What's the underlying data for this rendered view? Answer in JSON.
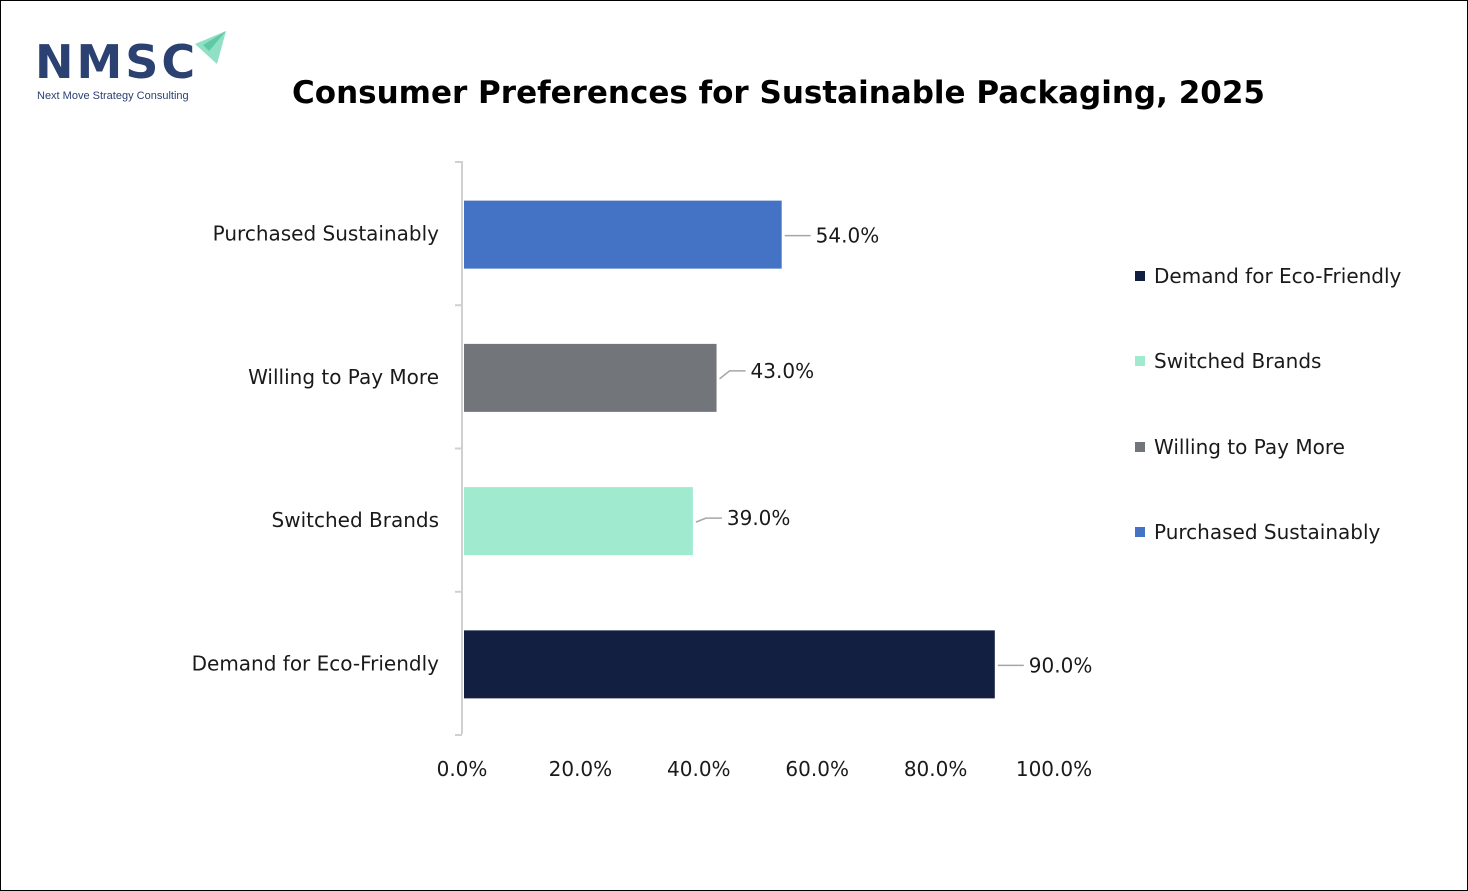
{
  "logo": {
    "text": "NMSC",
    "subtitle": "Next Move Strategy Consulting",
    "colors": {
      "text": "#2b4172",
      "arrow": "#8fe0c4"
    }
  },
  "chart_data": {
    "type": "bar",
    "orientation": "horizontal",
    "title": "Consumer Preferences for Sustainable Packaging, 2025",
    "categories": [
      "Purchased Sustainably",
      "Willing to Pay More",
      "Switched Brands",
      "Demand for Eco-Friendly"
    ],
    "values": [
      54.0,
      43.0,
      39.0,
      90.0
    ],
    "value_labels": [
      "54.0%",
      "43.0%",
      "39.0%",
      "90.0%"
    ],
    "colors": [
      "#4472c4",
      "#72767b",
      "#a0ead0",
      "#121f40"
    ],
    "xlim": [
      0,
      100
    ],
    "x_ticks": [
      "0.0%",
      "20.0%",
      "40.0%",
      "60.0%",
      "80.0%",
      "100.0%"
    ],
    "grid": false,
    "legend_position": "right",
    "legend": [
      {
        "label": "Demand for Eco-Friendly",
        "color": "#121f40"
      },
      {
        "label": "Switched Brands",
        "color": "#a0ead0"
      },
      {
        "label": "Willing to Pay More",
        "color": "#72767b"
      },
      {
        "label": "Purchased Sustainably",
        "color": "#4472c4"
      }
    ]
  }
}
